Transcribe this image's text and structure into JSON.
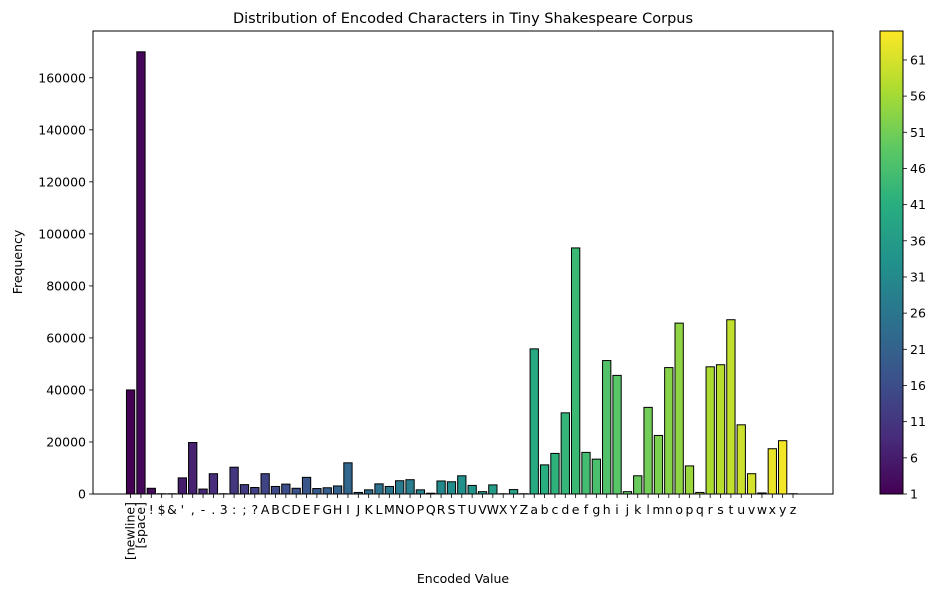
{
  "chart_data": {
    "type": "bar",
    "title": "Distribution of Encoded Characters in Tiny Shakespeare Corpus",
    "xlabel": "Encoded Value",
    "ylabel": "Frequency",
    "ylim": [
      0,
      178000
    ],
    "yticks": [
      0,
      20000,
      40000,
      60000,
      80000,
      100000,
      120000,
      140000,
      160000
    ],
    "grid": false,
    "categories": [
      "[newline]",
      "[space]",
      "!",
      "$",
      "&",
      "'",
      ",",
      "-",
      ".",
      "3",
      ":",
      ";",
      "?",
      "A",
      "B",
      "C",
      "D",
      "E",
      "F",
      "G",
      "H",
      "I",
      "J",
      "K",
      "L",
      "M",
      "N",
      "O",
      "P",
      "Q",
      "R",
      "S",
      "T",
      "U",
      "V",
      "W",
      "X",
      "Y",
      "Z",
      "a",
      "b",
      "c",
      "d",
      "e",
      "f",
      "g",
      "h",
      "i",
      "j",
      "k",
      "l",
      "m",
      "n",
      "o",
      "p",
      "q",
      "r",
      "s",
      "t",
      "u",
      "v",
      "w",
      "x",
      "y",
      "z"
    ],
    "values": [
      40000,
      170000,
      2200,
      100,
      100,
      6200,
      19800,
      1900,
      7800,
      100,
      10300,
      3600,
      2500,
      7800,
      2900,
      3800,
      2200,
      6400,
      2100,
      2400,
      3100,
      12000,
      600,
      1600,
      3900,
      2900,
      5100,
      5500,
      1600,
      300,
      5000,
      4700,
      7000,
      3300,
      900,
      3500,
      100,
      1700,
      100,
      55800,
      11200,
      15600,
      31200,
      94600,
      16000,
      13400,
      51300,
      45600,
      900,
      7000,
      33300,
      22500,
      48600,
      65700,
      10800,
      600,
      48900,
      49700,
      67000,
      26600,
      7800,
      400,
      17400,
      20500,
      100
    ],
    "colorbar": {
      "cmap": "viridis",
      "range": [
        1,
        65
      ],
      "ticks": [
        "1",
        "6",
        "11",
        "16",
        "21",
        "26",
        "31",
        "36",
        "41",
        "46",
        "51",
        "56",
        "61"
      ]
    }
  }
}
